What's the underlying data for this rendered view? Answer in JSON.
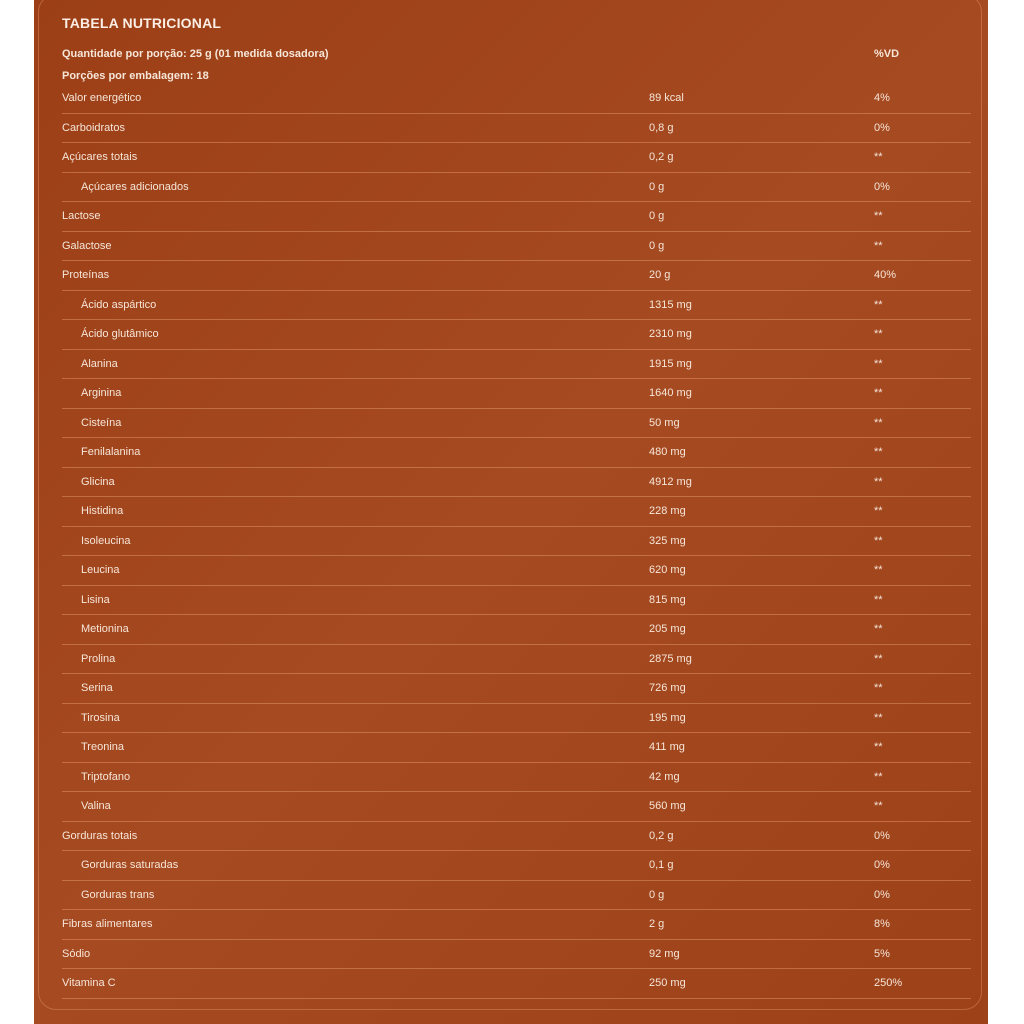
{
  "title": "TABELA NUTRICIONAL",
  "serving": "Quantidade por porção: 25 g (01 medida dosadora)",
  "servings_per_pack": "Porções por embalagem: 18",
  "vd_header": "%VD",
  "rows": [
    {
      "name": "Valor energético",
      "amount": "89 kcal",
      "vd": "4%",
      "sub": false
    },
    {
      "name": "Carboidratos",
      "amount": "0,8 g",
      "vd": "0%",
      "sub": false
    },
    {
      "name": "Açúcares totais",
      "amount": "0,2 g",
      "vd": "**",
      "sub": false
    },
    {
      "name": "Açúcares adicionados",
      "amount": "0 g",
      "vd": "0%",
      "sub": true
    },
    {
      "name": "Lactose",
      "amount": "0 g",
      "vd": "**",
      "sub": false
    },
    {
      "name": "Galactose",
      "amount": "0 g",
      "vd": "**",
      "sub": false
    },
    {
      "name": "Proteínas",
      "amount": "20 g",
      "vd": "40%",
      "sub": false
    },
    {
      "name": "Ácido aspártico",
      "amount": "1315 mg",
      "vd": "**",
      "sub": true
    },
    {
      "name": "Ácido glutâmico",
      "amount": "2310 mg",
      "vd": "**",
      "sub": true
    },
    {
      "name": "Alanina",
      "amount": "1915 mg",
      "vd": "**",
      "sub": true
    },
    {
      "name": "Arginina",
      "amount": "1640 mg",
      "vd": "**",
      "sub": true
    },
    {
      "name": "Cisteína",
      "amount": "50 mg",
      "vd": "**",
      "sub": true
    },
    {
      "name": "Fenilalanina",
      "amount": "480 mg",
      "vd": "**",
      "sub": true
    },
    {
      "name": "Glicina",
      "amount": "4912 mg",
      "vd": "**",
      "sub": true
    },
    {
      "name": "Histidina",
      "amount": "228 mg",
      "vd": "**",
      "sub": true
    },
    {
      "name": "Isoleucina",
      "amount": "325 mg",
      "vd": "**",
      "sub": true
    },
    {
      "name": "Leucina",
      "amount": "620 mg",
      "vd": "**",
      "sub": true
    },
    {
      "name": "Lisina",
      "amount": "815 mg",
      "vd": "**",
      "sub": true
    },
    {
      "name": "Metionina",
      "amount": "205 mg",
      "vd": "**",
      "sub": true
    },
    {
      "name": "Prolina",
      "amount": "2875 mg",
      "vd": "**",
      "sub": true
    },
    {
      "name": "Serina",
      "amount": "726 mg",
      "vd": "**",
      "sub": true
    },
    {
      "name": "Tirosina",
      "amount": "195 mg",
      "vd": "**",
      "sub": true
    },
    {
      "name": "Treonina",
      "amount": "411 mg",
      "vd": "**",
      "sub": true
    },
    {
      "name": "Triptofano",
      "amount": "42 mg",
      "vd": "**",
      "sub": true
    },
    {
      "name": "Valina",
      "amount": "560 mg",
      "vd": "**",
      "sub": true
    },
    {
      "name": "Gorduras totais",
      "amount": "0,2 g",
      "vd": "0%",
      "sub": false
    },
    {
      "name": "Gorduras saturadas",
      "amount": "0,1 g",
      "vd": "0%",
      "sub": true
    },
    {
      "name": "Gorduras trans",
      "amount": "0 g",
      "vd": "0%",
      "sub": true
    },
    {
      "name": "Fibras alimentares",
      "amount": "2 g",
      "vd": "8%",
      "sub": false
    },
    {
      "name": "Sódio",
      "amount": "92 mg",
      "vd": "5%",
      "sub": false
    },
    {
      "name": "Vitamina C",
      "amount": "250 mg",
      "vd": "250%",
      "sub": false
    }
  ]
}
